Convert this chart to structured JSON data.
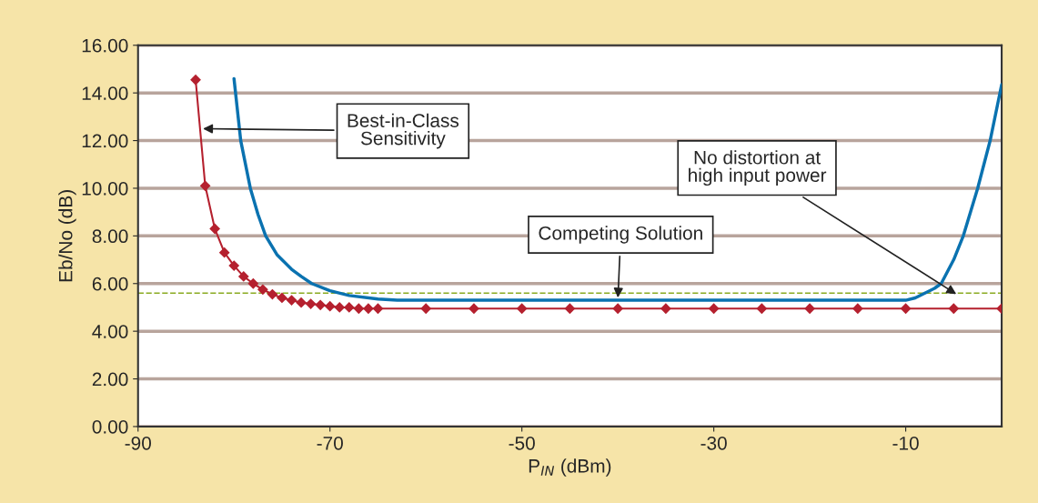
{
  "chart_data": {
    "type": "line",
    "xlabel": "P$_{IN}$ (dBm)",
    "ylabel": "Eb/No (dB)",
    "xlim": [
      -90,
      0
    ],
    "xticks": [
      -90,
      -70,
      -50,
      -30,
      -10
    ],
    "ylim": [
      0,
      16
    ],
    "yticks": [
      {
        "value": 0,
        "label": "0.00"
      },
      {
        "value": 2,
        "label": "2.00"
      },
      {
        "value": 4,
        "label": "4.00"
      },
      {
        "value": 6,
        "label": "6.00"
      },
      {
        "value": 8,
        "label": "8.00"
      },
      {
        "value": 10,
        "label": "10.00"
      },
      {
        "value": 12,
        "label": "12.00"
      },
      {
        "value": 14,
        "label": "14.00"
      },
      {
        "value": 16,
        "label": "16.00"
      }
    ],
    "grid": "y",
    "legend": false,
    "series": [
      {
        "color": "#b5202e",
        "marker": "diamond",
        "x": [
          -84,
          -83,
          -82,
          -81,
          -80,
          -79,
          -78,
          -77,
          -76,
          -75,
          -74,
          -73,
          -72,
          -71,
          -70,
          -69,
          -68,
          -67,
          -66,
          -65,
          -60,
          -55,
          -50,
          -45,
          -40,
          -35,
          -30,
          -25,
          -20,
          -15,
          -10,
          -5,
          0
        ],
        "values": [
          14.55,
          10.1,
          8.3,
          7.3,
          6.75,
          6.3,
          6.0,
          5.75,
          5.55,
          5.4,
          5.3,
          5.2,
          5.15,
          5.1,
          5.05,
          5.0,
          5.0,
          4.95,
          4.95,
          4.95,
          4.95,
          4.95,
          4.95,
          4.95,
          4.95,
          4.95,
          4.95,
          4.95,
          4.95,
          4.95,
          4.95,
          4.95,
          4.95
        ]
      },
      {
        "color": "#0a72b0",
        "marker": "none",
        "x": [
          -80,
          -79.3,
          -78.3,
          -77.5,
          -76.7,
          -75.5,
          -74,
          -73,
          -71.9,
          -70,
          -68,
          -65,
          -63,
          -40,
          -10,
          -9,
          -8,
          -7,
          -6.3,
          -5,
          -4,
          -2.5,
          -1.2,
          0
        ],
        "values": [
          14.6,
          12,
          10,
          8.9,
          8,
          7.2,
          6.6,
          6.3,
          6,
          5.7,
          5.5,
          5.35,
          5.3,
          5.3,
          5.3,
          5.4,
          5.6,
          5.8,
          6,
          7,
          8,
          10,
          12,
          14.35
        ]
      }
    ],
    "ref_lines": [
      {
        "axis": "y",
        "value": 5.6,
        "color": "#8aaa20",
        "line_style": "dashed"
      }
    ],
    "annotations": [
      {
        "text": "Best-in-Class\nSensitivity",
        "x": -83.5,
        "y": 12.5
      },
      {
        "text": "Competing Solution",
        "x": -40,
        "y": 5.3
      },
      {
        "text": "No distortion at\nhigh input power",
        "x": -4.5,
        "y": 5.5
      }
    ]
  }
}
